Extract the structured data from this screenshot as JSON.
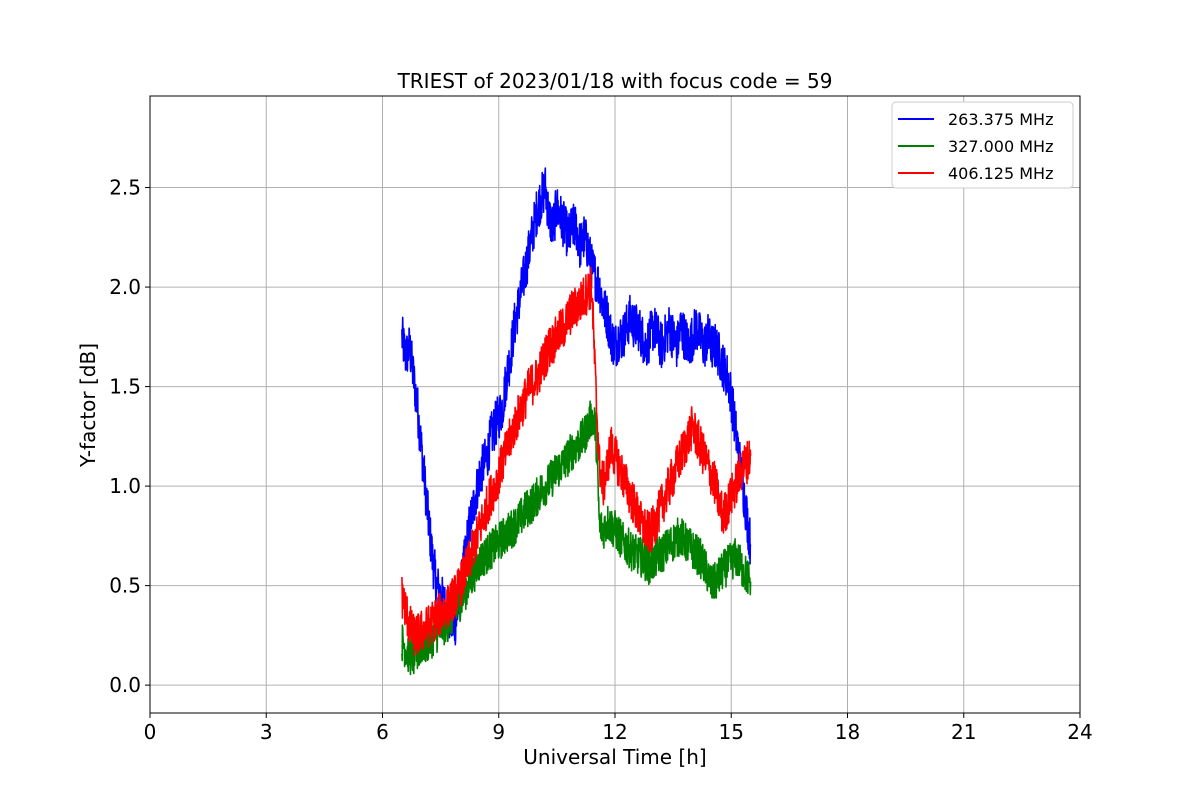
{
  "chart_data": {
    "type": "line",
    "title": "TRIEST of 2023/01/18 with focus code = 59",
    "xlabel": "Universal Time [h]",
    "ylabel": "Y-factor [dB]",
    "xlim": [
      0,
      24
    ],
    "ylim": [
      -0.14,
      2.96
    ],
    "xticks": [
      0,
      3,
      6,
      9,
      12,
      15,
      18,
      21,
      24
    ],
    "yticks": [
      0.0,
      0.5,
      1.0,
      1.5,
      2.0,
      2.5
    ],
    "xtick_labels": [
      "0",
      "3",
      "6",
      "9",
      "12",
      "15",
      "18",
      "21",
      "24"
    ],
    "ytick_labels": [
      "0.0",
      "0.5",
      "1.0",
      "1.5",
      "2.0",
      "2.5"
    ],
    "grid": true,
    "legend_position": "top-right",
    "series": [
      {
        "name": "263.375 MHz",
        "color": "#0000ff",
        "x": [
          6.5,
          6.6,
          6.7,
          6.8,
          6.9,
          7.0,
          7.1,
          7.2,
          7.3,
          7.4,
          7.5,
          7.6,
          7.7,
          7.8,
          7.9,
          8.0,
          8.1,
          8.2,
          8.3,
          8.4,
          8.5,
          8.6,
          8.7,
          8.8,
          8.9,
          9.0,
          9.1,
          9.2,
          9.3,
          9.4,
          9.5,
          9.6,
          9.7,
          9.8,
          9.9,
          10.0,
          10.1,
          10.2,
          10.3,
          10.4,
          10.5,
          10.6,
          10.7,
          10.8,
          10.9,
          11.0,
          11.1,
          11.2,
          11.3,
          11.4,
          11.5,
          11.6,
          11.7,
          11.8,
          11.9,
          12.0,
          12.1,
          12.2,
          12.3,
          12.4,
          12.5,
          12.6,
          12.7,
          12.8,
          12.9,
          13.0,
          13.1,
          13.2,
          13.3,
          13.4,
          13.5,
          13.6,
          13.7,
          13.8,
          13.9,
          14.0,
          14.1,
          14.2,
          14.3,
          14.4,
          14.5,
          14.6,
          14.7,
          14.8,
          14.9,
          15.0,
          15.1,
          15.2,
          15.3,
          15.4,
          15.5
        ],
        "y": [
          1.75,
          1.65,
          1.7,
          1.55,
          1.4,
          1.2,
          1.0,
          0.8,
          0.62,
          0.5,
          0.45,
          0.4,
          0.35,
          0.3,
          0.32,
          0.45,
          0.6,
          0.75,
          0.85,
          0.95,
          1.05,
          1.1,
          1.15,
          1.25,
          1.3,
          1.35,
          1.4,
          1.55,
          1.65,
          1.8,
          1.9,
          2.0,
          2.1,
          2.2,
          2.3,
          2.4,
          2.45,
          2.5,
          2.35,
          2.3,
          2.4,
          2.35,
          2.3,
          2.25,
          2.3,
          2.3,
          2.2,
          2.25,
          2.2,
          2.1,
          2.05,
          2.0,
          1.9,
          1.85,
          1.75,
          1.7,
          1.75,
          1.75,
          1.8,
          1.85,
          1.8,
          1.8,
          1.75,
          1.7,
          1.75,
          1.8,
          1.75,
          1.7,
          1.75,
          1.8,
          1.75,
          1.7,
          1.8,
          1.75,
          1.7,
          1.75,
          1.8,
          1.75,
          1.7,
          1.75,
          1.7,
          1.7,
          1.65,
          1.6,
          1.55,
          1.45,
          1.3,
          1.15,
          1.0,
          0.85,
          0.7
        ],
        "noise": 0.12
      },
      {
        "name": "327.000 MHz",
        "color": "#008000",
        "x": [
          6.5,
          6.6,
          6.7,
          6.8,
          6.9,
          7.0,
          7.1,
          7.2,
          7.3,
          7.4,
          7.5,
          7.6,
          7.7,
          7.8,
          7.9,
          8.0,
          8.1,
          8.2,
          8.3,
          8.4,
          8.5,
          8.6,
          8.7,
          8.8,
          8.9,
          9.0,
          9.1,
          9.2,
          9.3,
          9.4,
          9.5,
          9.6,
          9.7,
          9.8,
          9.9,
          10.0,
          10.1,
          10.2,
          10.3,
          10.4,
          10.5,
          10.6,
          10.7,
          10.8,
          10.9,
          11.0,
          11.1,
          11.2,
          11.3,
          11.4,
          11.5,
          11.6,
          11.7,
          11.8,
          11.9,
          12.0,
          12.1,
          12.2,
          12.3,
          12.4,
          12.5,
          12.6,
          12.7,
          12.8,
          12.9,
          13.0,
          13.1,
          13.2,
          13.3,
          13.4,
          13.5,
          13.6,
          13.7,
          13.8,
          13.9,
          14.0,
          14.1,
          14.2,
          14.3,
          14.4,
          14.5,
          14.6,
          14.7,
          14.8,
          14.9,
          15.0,
          15.1,
          15.2,
          15.3,
          15.4,
          15.5
        ],
        "y": [
          0.22,
          0.18,
          0.15,
          0.14,
          0.16,
          0.2,
          0.2,
          0.22,
          0.24,
          0.26,
          0.28,
          0.3,
          0.32,
          0.35,
          0.38,
          0.42,
          0.46,
          0.5,
          0.54,
          0.58,
          0.62,
          0.64,
          0.66,
          0.68,
          0.7,
          0.72,
          0.74,
          0.76,
          0.78,
          0.8,
          0.82,
          0.85,
          0.88,
          0.9,
          0.92,
          0.95,
          0.98,
          1.0,
          1.02,
          1.05,
          1.08,
          1.1,
          1.12,
          1.15,
          1.18,
          1.2,
          1.22,
          1.25,
          1.3,
          1.35,
          1.3,
          0.8,
          0.78,
          0.82,
          0.8,
          0.78,
          0.75,
          0.72,
          0.7,
          0.68,
          0.66,
          0.65,
          0.64,
          0.62,
          0.6,
          0.62,
          0.65,
          0.66,
          0.68,
          0.7,
          0.72,
          0.74,
          0.75,
          0.72,
          0.7,
          0.68,
          0.66,
          0.64,
          0.6,
          0.55,
          0.5,
          0.52,
          0.55,
          0.58,
          0.6,
          0.62,
          0.64,
          0.62,
          0.58,
          0.55,
          0.52
        ],
        "noise": 0.1
      },
      {
        "name": "406.125 MHz",
        "color": "#ff0000",
        "x": [
          6.5,
          6.6,
          6.7,
          6.8,
          6.9,
          7.0,
          7.1,
          7.2,
          7.3,
          7.4,
          7.5,
          7.6,
          7.7,
          7.8,
          7.9,
          8.0,
          8.1,
          8.2,
          8.3,
          8.4,
          8.5,
          8.6,
          8.7,
          8.8,
          8.9,
          9.0,
          9.1,
          9.2,
          9.3,
          9.4,
          9.5,
          9.6,
          9.7,
          9.8,
          9.9,
          10.0,
          10.1,
          10.2,
          10.3,
          10.4,
          10.5,
          10.6,
          10.7,
          10.8,
          10.9,
          11.0,
          11.1,
          11.2,
          11.3,
          11.4,
          11.5,
          11.6,
          11.7,
          11.8,
          11.9,
          12.0,
          12.1,
          12.2,
          12.3,
          12.4,
          12.5,
          12.6,
          12.7,
          12.8,
          12.9,
          13.0,
          13.1,
          13.2,
          13.3,
          13.4,
          13.5,
          13.6,
          13.7,
          13.8,
          13.9,
          14.0,
          14.1,
          14.2,
          14.3,
          14.4,
          14.5,
          14.6,
          14.7,
          14.8,
          14.9,
          15.0,
          15.1,
          15.2,
          15.3,
          15.4,
          15.5
        ],
        "y": [
          0.45,
          0.38,
          0.3,
          0.25,
          0.25,
          0.27,
          0.28,
          0.3,
          0.32,
          0.34,
          0.36,
          0.38,
          0.4,
          0.43,
          0.46,
          0.5,
          0.55,
          0.6,
          0.66,
          0.72,
          0.78,
          0.84,
          0.9,
          0.96,
          1.0,
          1.06,
          1.12,
          1.18,
          1.24,
          1.3,
          1.35,
          1.4,
          1.45,
          1.5,
          1.52,
          1.55,
          1.6,
          1.65,
          1.7,
          1.72,
          1.75,
          1.78,
          1.8,
          1.85,
          1.88,
          1.9,
          1.92,
          1.95,
          1.98,
          2.0,
          1.5,
          1.1,
          1.0,
          1.1,
          1.2,
          1.15,
          1.1,
          1.05,
          1.0,
          0.95,
          0.9,
          0.85,
          0.8,
          0.78,
          0.76,
          0.8,
          0.85,
          0.9,
          0.95,
          1.0,
          1.05,
          1.1,
          1.15,
          1.2,
          1.25,
          1.3,
          1.25,
          1.2,
          1.15,
          1.1,
          1.05,
          1.0,
          0.9,
          0.85,
          0.9,
          0.95,
          1.0,
          1.05,
          1.1,
          1.12,
          1.15
        ],
        "noise": 0.11
      }
    ]
  }
}
